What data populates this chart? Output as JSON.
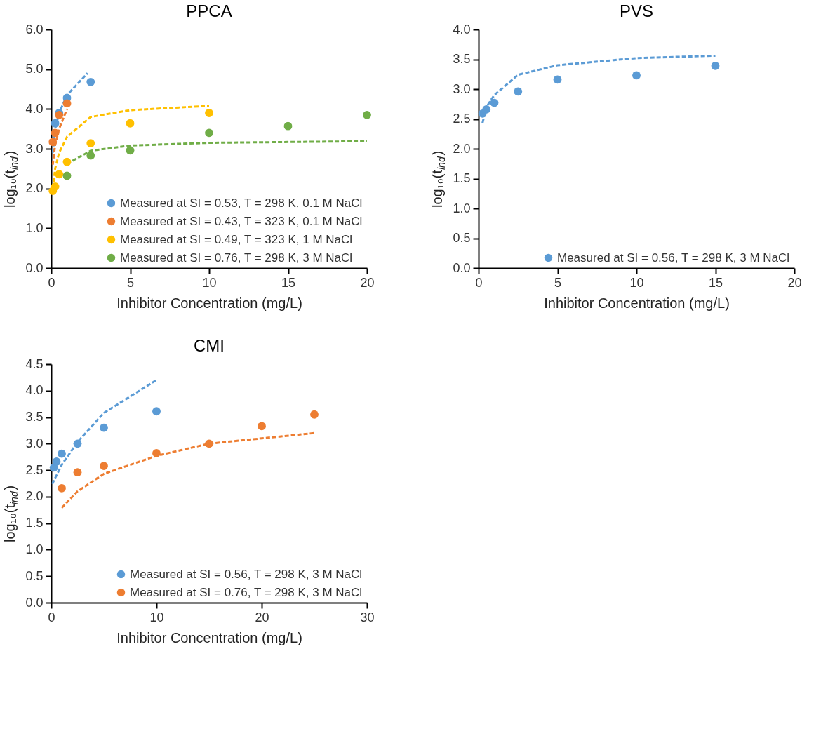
{
  "chart_data": [
    {
      "type": "scatter",
      "title": "PPCA",
      "xlabel": "Inhibitor Concentration (mg/L)",
      "ylabel": "log₁₀(t$_{ind}$)",
      "xlim": [
        0,
        20
      ],
      "xticks": [
        0,
        5,
        10,
        15,
        20
      ],
      "ylim": [
        0,
        6
      ],
      "yticks": [
        {
          "value": 0,
          "label": "0.0"
        },
        {
          "value": 1,
          "label": "1.0"
        },
        {
          "value": 2,
          "label": "2.0"
        },
        {
          "value": 3,
          "label": "3.0"
        },
        {
          "value": 4,
          "label": "4.0"
        },
        {
          "value": 5,
          "label": "5.0"
        },
        {
          "value": 6,
          "label": "6.0"
        }
      ],
      "grid": false,
      "legend": "bottom right",
      "marker": "circle",
      "line_style": "dashed",
      "series": [
        {
          "type": "line",
          "marker": "none",
          "color": "#5b9bd5",
          "x": [
            0.1,
            0.25,
            0.5,
            1,
            2.3
          ],
          "values": [
            2.9,
            3.5,
            3.9,
            4.35,
            4.9
          ]
        },
        {
          "type": "line",
          "marker": "none",
          "color": "#ed7d31",
          "x": [
            0.1,
            0.25,
            0.5,
            1
          ],
          "values": [
            2.6,
            3.1,
            3.5,
            4.0
          ]
        },
        {
          "type": "line",
          "marker": "none",
          "color": "#ffc000",
          "x": [
            0.1,
            0.25,
            0.5,
            1,
            2.5,
            5,
            10
          ],
          "values": [
            2.0,
            2.5,
            2.9,
            3.3,
            3.8,
            3.97,
            4.08
          ]
        },
        {
          "type": "line",
          "marker": "none",
          "color": "#70ad47",
          "x": [
            1,
            2.5,
            5,
            10,
            15,
            20
          ],
          "values": [
            2.62,
            2.95,
            3.08,
            3.15,
            3.17,
            3.19
          ]
        },
        {
          "name": "Measured at SI = 0.53, T = 298 K, 0.1 M NaCl",
          "color": "#5b9bd5",
          "x": [
            0.25,
            0.5,
            1,
            2.5
          ],
          "values": [
            3.64,
            3.9,
            4.28,
            4.68
          ]
        },
        {
          "name": "Measured at SI = 0.43, T = 323 K, 0.1 M NaCl",
          "color": "#ed7d31",
          "x": [
            0.1,
            0.25,
            0.5,
            1
          ],
          "values": [
            3.17,
            3.4,
            3.85,
            4.14
          ]
        },
        {
          "name": "Measured at SI = 0.49, T = 323 K, 1 M NaCl",
          "color": "#ffc000",
          "x": [
            0.1,
            0.25,
            0.5,
            1,
            2.5,
            5,
            10
          ],
          "values": [
            1.94,
            2.05,
            2.36,
            2.67,
            3.14,
            3.64,
            3.9
          ]
        },
        {
          "name": "Measured at SI = 0.76, T = 298 K, 3 M NaCl",
          "color": "#70ad47",
          "x": [
            1,
            2.5,
            5,
            10,
            15,
            20
          ],
          "values": [
            2.32,
            2.83,
            2.96,
            3.4,
            3.57,
            3.85
          ]
        }
      ]
    },
    {
      "type": "scatter",
      "title": "PVS",
      "xlabel": "Inhibitor Concentration (mg/L)",
      "ylabel": "log₁₀(t$_{ind}$)",
      "xlim": [
        0,
        20
      ],
      "xticks": [
        0,
        5,
        10,
        15,
        20
      ],
      "ylim": [
        0,
        4
      ],
      "yticks": [
        {
          "value": 0,
          "label": "0.0"
        },
        {
          "value": 0.5,
          "label": "0.5"
        },
        {
          "value": 1,
          "label": "1.0"
        },
        {
          "value": 1.5,
          "label": "1.5"
        },
        {
          "value": 2,
          "label": "2.0"
        },
        {
          "value": 2.5,
          "label": "2.5"
        },
        {
          "value": 3,
          "label": "3.0"
        },
        {
          "value": 3.5,
          "label": "3.5"
        },
        {
          "value": 4,
          "label": "4.0"
        }
      ],
      "grid": false,
      "legend": "bottom right",
      "marker": "circle",
      "line_style": "dashed",
      "series": [
        {
          "type": "line",
          "marker": "none",
          "color": "#5b9bd5",
          "x": [
            0.25,
            0.5,
            1,
            2.5,
            5,
            10,
            15
          ],
          "values": [
            2.43,
            2.7,
            2.9,
            3.24,
            3.4,
            3.52,
            3.56
          ]
        },
        {
          "name": "Measured at SI = 0.56, T = 298 K, 3 M NaCl",
          "color": "#5b9bd5",
          "x": [
            0.25,
            0.5,
            1,
            2.5,
            5,
            10,
            15
          ],
          "values": [
            2.59,
            2.66,
            2.77,
            2.96,
            3.16,
            3.23,
            3.39
          ]
        }
      ]
    },
    {
      "type": "scatter",
      "title": "CMI",
      "xlabel": "Inhibitor Concentration (mg/L)",
      "ylabel": "log₁₀(t$_{ind}$)",
      "xlim": [
        0,
        30
      ],
      "xticks": [
        0,
        10,
        20,
        30
      ],
      "ylim": [
        0,
        4.5
      ],
      "yticks": [
        {
          "value": 0,
          "label": "0.0"
        },
        {
          "value": 0.5,
          "label": "0.5"
        },
        {
          "value": 1,
          "label": "1.0"
        },
        {
          "value": 1.5,
          "label": "1.5"
        },
        {
          "value": 2,
          "label": "2.0"
        },
        {
          "value": 2.5,
          "label": "2.5"
        },
        {
          "value": 3,
          "label": "3.0"
        },
        {
          "value": 3.5,
          "label": "3.5"
        },
        {
          "value": 4,
          "label": "4.0"
        },
        {
          "value": 4.5,
          "label": "4.5"
        }
      ],
      "grid": false,
      "legend": "bottom right",
      "marker": "circle",
      "line_style": "dashed",
      "series": [
        {
          "type": "line",
          "marker": "none",
          "color": "#5b9bd5",
          "x": [
            0.1,
            1,
            2.5,
            5,
            10
          ],
          "values": [
            2.24,
            2.6,
            3.03,
            3.58,
            4.2
          ]
        },
        {
          "type": "line",
          "marker": "none",
          "color": "#ed7d31",
          "x": [
            1,
            2.5,
            5,
            10,
            15,
            20,
            25
          ],
          "values": [
            1.79,
            2.1,
            2.43,
            2.77,
            3.0,
            3.1,
            3.2
          ]
        },
        {
          "name": "Measured at SI = 0.56, T = 298 K, 3 M NaCl",
          "color": "#5b9bd5",
          "x": [
            0.25,
            0.5,
            1,
            2.5,
            5,
            10
          ],
          "values": [
            2.55,
            2.66,
            2.81,
            3.0,
            3.3,
            3.61
          ]
        },
        {
          "name": "Measured at SI = 0.76, T = 298 K, 3 M NaCl",
          "color": "#ed7d31",
          "x": [
            1,
            2.5,
            5,
            10,
            15,
            20,
            25
          ],
          "values": [
            2.16,
            2.46,
            2.58,
            2.82,
            3.0,
            3.33,
            3.55
          ]
        }
      ]
    }
  ]
}
